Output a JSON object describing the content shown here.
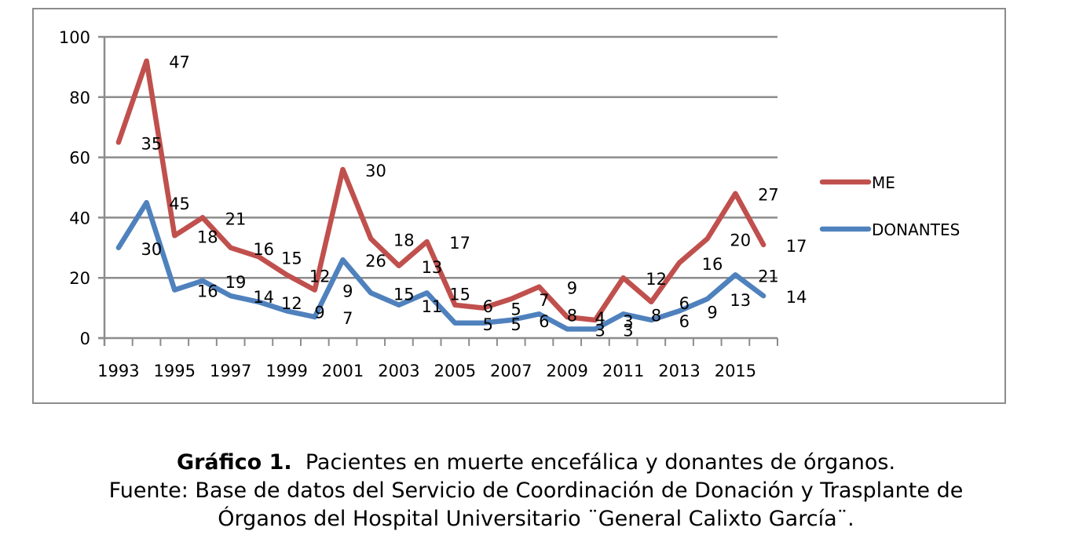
{
  "chart_data": {
    "type": "line",
    "stacked": true,
    "title": "",
    "xlabel": "",
    "ylabel": "",
    "ylim": [
      0,
      100
    ],
    "yticks": [
      0,
      20,
      40,
      60,
      80,
      100
    ],
    "grid": true,
    "legend_position": "right",
    "categories": [
      "1993",
      "1994",
      "1995",
      "1996",
      "1997",
      "1998",
      "1999",
      "2000",
      "2001",
      "2002",
      "2003",
      "2004",
      "2005",
      "2006",
      "2007",
      "2008",
      "2009",
      "2010",
      "2011",
      "2012",
      "2013",
      "2014",
      "2015",
      "2016"
    ],
    "xtick_labels": [
      "1993",
      "1995",
      "1997",
      "1999",
      "2001",
      "2003",
      "2005",
      "2007",
      "2009",
      "2011",
      "2013",
      "2015"
    ],
    "series": [
      {
        "name": "DONANTES",
        "color": "#4f81bd",
        "values": [
          30,
          45,
          16,
          19,
          14,
          12,
          9,
          7,
          26,
          15,
          11,
          15,
          5,
          5,
          6,
          8,
          3,
          3,
          8,
          6,
          9,
          13,
          21,
          14
        ]
      },
      {
        "name": "ME",
        "color": "#c0504d",
        "values": [
          35,
          47,
          18,
          21,
          16,
          15,
          12,
          9,
          30,
          18,
          13,
          17,
          6,
          5,
          7,
          9,
          4,
          3,
          12,
          6,
          16,
          20,
          27,
          17
        ]
      }
    ],
    "legend": [
      "ME",
      "DONANTES"
    ]
  },
  "caption": {
    "label": "Gráfico 1.",
    "title": "Pacientes en muerte encefálica y donantes de órganos.",
    "source_line1": "Fuente: Base de datos del Servicio de Coordinación de Donación y Trasplante de",
    "source_line2": "Órganos del Hospital Universitario ¨General Calixto García¨."
  }
}
